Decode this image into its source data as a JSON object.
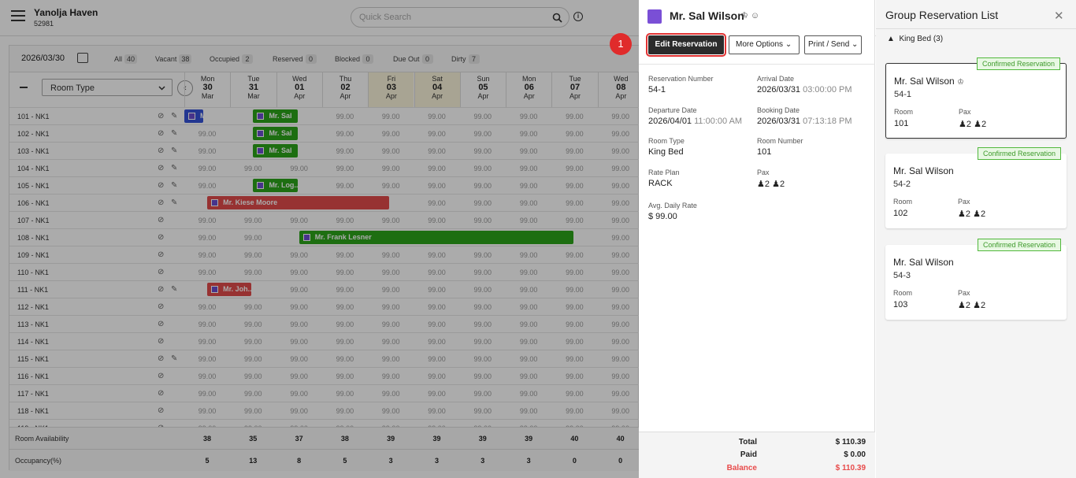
{
  "app": {
    "hotel_name": "Yanolja Haven",
    "hotel_code": "52981"
  },
  "search": {
    "placeholder": "Quick Search"
  },
  "calendar": {
    "date": "2026/03/30",
    "filters": [
      {
        "label": "All",
        "count": "40"
      },
      {
        "label": "Vacant",
        "count": "38"
      },
      {
        "label": "Occupied",
        "count": "2"
      },
      {
        "label": "Reserved",
        "count": "0"
      },
      {
        "label": "Blocked",
        "count": "0"
      },
      {
        "label": "Due Out",
        "count": "0"
      },
      {
        "label": "Dirty",
        "count": "7"
      }
    ],
    "room_type_select": "Room Type",
    "days": [
      {
        "wd": "Mon",
        "d": "30",
        "m": "Mar"
      },
      {
        "wd": "Tue",
        "d": "31",
        "m": "Mar"
      },
      {
        "wd": "Wed",
        "d": "01",
        "m": "Apr"
      },
      {
        "wd": "Thu",
        "d": "02",
        "m": "Apr"
      },
      {
        "wd": "Fri",
        "d": "03",
        "m": "Apr"
      },
      {
        "wd": "Sat",
        "d": "04",
        "m": "Apr"
      },
      {
        "wd": "Sun",
        "d": "05",
        "m": "Apr"
      },
      {
        "wd": "Mon",
        "d": "06",
        "m": "Apr"
      },
      {
        "wd": "Tue",
        "d": "07",
        "m": "Apr"
      },
      {
        "wd": "Wed",
        "d": "08",
        "m": "Apr"
      }
    ],
    "rate": "99.00",
    "rooms": [
      "101 - NK1",
      "102 - NK1",
      "103 - NK1",
      "104 - NK1",
      "105 - NK1",
      "106 - NK1",
      "107 - NK1",
      "108 - NK1",
      "109 - NK1",
      "110 - NK1",
      "111 - NK1",
      "112 - NK1",
      "113 - NK1",
      "114 - NK1",
      "115 - NK1",
      "116 - NK1",
      "117 - NK1",
      "118 - NK1",
      "119 - NK1"
    ],
    "bookings": [
      {
        "row": 0,
        "start": 0,
        "span": 0.45,
        "color": "b",
        "label": "M"
      },
      {
        "row": 0,
        "start": 1.5,
        "span": 1.0,
        "color": "g",
        "label": "Mr. Sal"
      },
      {
        "row": 1,
        "start": 1.5,
        "span": 1.0,
        "color": "g",
        "label": "Mr. Sal"
      },
      {
        "row": 2,
        "start": 1.5,
        "span": 1.0,
        "color": "g",
        "label": "Mr. Sal"
      },
      {
        "row": 4,
        "start": 1.5,
        "span": 1.0,
        "color": "g",
        "label": "Mr. Log..."
      },
      {
        "row": 5,
        "start": 0.5,
        "span": 4.0,
        "color": "r",
        "label": "Mr. Kiese Moore"
      },
      {
        "row": 7,
        "start": 2.5,
        "span": 6.0,
        "color": "g",
        "label": "Mr. Frank Lesner"
      },
      {
        "row": 10,
        "start": 0.5,
        "span": 1.0,
        "color": "r",
        "label": "Mr. Joh..."
      }
    ],
    "footer": {
      "availability_label": "Room Availability",
      "availability": [
        "38",
        "35",
        "37",
        "38",
        "39",
        "39",
        "39",
        "39",
        "40",
        "40"
      ],
      "occupancy_label": "Occupancy(%)",
      "occupancy": [
        "5",
        "13",
        "8",
        "5",
        "3",
        "3",
        "3",
        "3",
        "0",
        "0"
      ]
    }
  },
  "detail": {
    "guest_name": "Mr. Sal Wilson",
    "edit_label": "Edit Reservation",
    "more_label": "More Options",
    "print_label": "Print / Send",
    "annotation": "1",
    "fields": {
      "res_num_label": "Reservation Number",
      "res_num": "54-1",
      "arrival_label": "Arrival Date",
      "arrival_date": "2026/03/31",
      "arrival_time": "03:00:00 PM",
      "departure_label": "Departure Date",
      "departure_date": "2026/04/01",
      "departure_time": "11:00:00 AM",
      "booking_label": "Booking Date",
      "booking_date": "2026/03/31",
      "booking_time": "07:13:18 PM",
      "room_type_label": "Room Type",
      "room_type": "King Bed",
      "room_number_label": "Room Number",
      "room_number": "101",
      "rate_plan_label": "Rate Plan",
      "rate_plan": "RACK",
      "pax_label": "Pax",
      "pax_adult": "2",
      "pax_child": "2",
      "adr_label": "Avg. Daily Rate",
      "adr": "$ 99.00"
    },
    "totals": {
      "total_label": "Total",
      "total": "$ 110.39",
      "paid_label": "Paid",
      "paid": "$ 0.00",
      "balance_label": "Balance",
      "balance": "$ 110.39"
    }
  },
  "group": {
    "title": "Group Reservation List",
    "section": "King Bed (3)",
    "cards": [
      {
        "status": "Confirmed Reservation",
        "name": "Mr. Sal Wilson",
        "num": "54-1",
        "room_label": "Room",
        "room": "101",
        "pax_label": "Pax",
        "adult": "2",
        "child": "2"
      },
      {
        "status": "Confirmed Reservation",
        "name": "Mr. Sal Wilson",
        "num": "54-2",
        "room_label": "Room",
        "room": "102",
        "pax_label": "Pax",
        "adult": "2",
        "child": "2"
      },
      {
        "status": "Confirmed Reservation",
        "name": "Mr. Sal Wilson",
        "num": "54-3",
        "room_label": "Room",
        "room": "103",
        "pax_label": "Pax",
        "adult": "2",
        "child": "2"
      }
    ]
  }
}
